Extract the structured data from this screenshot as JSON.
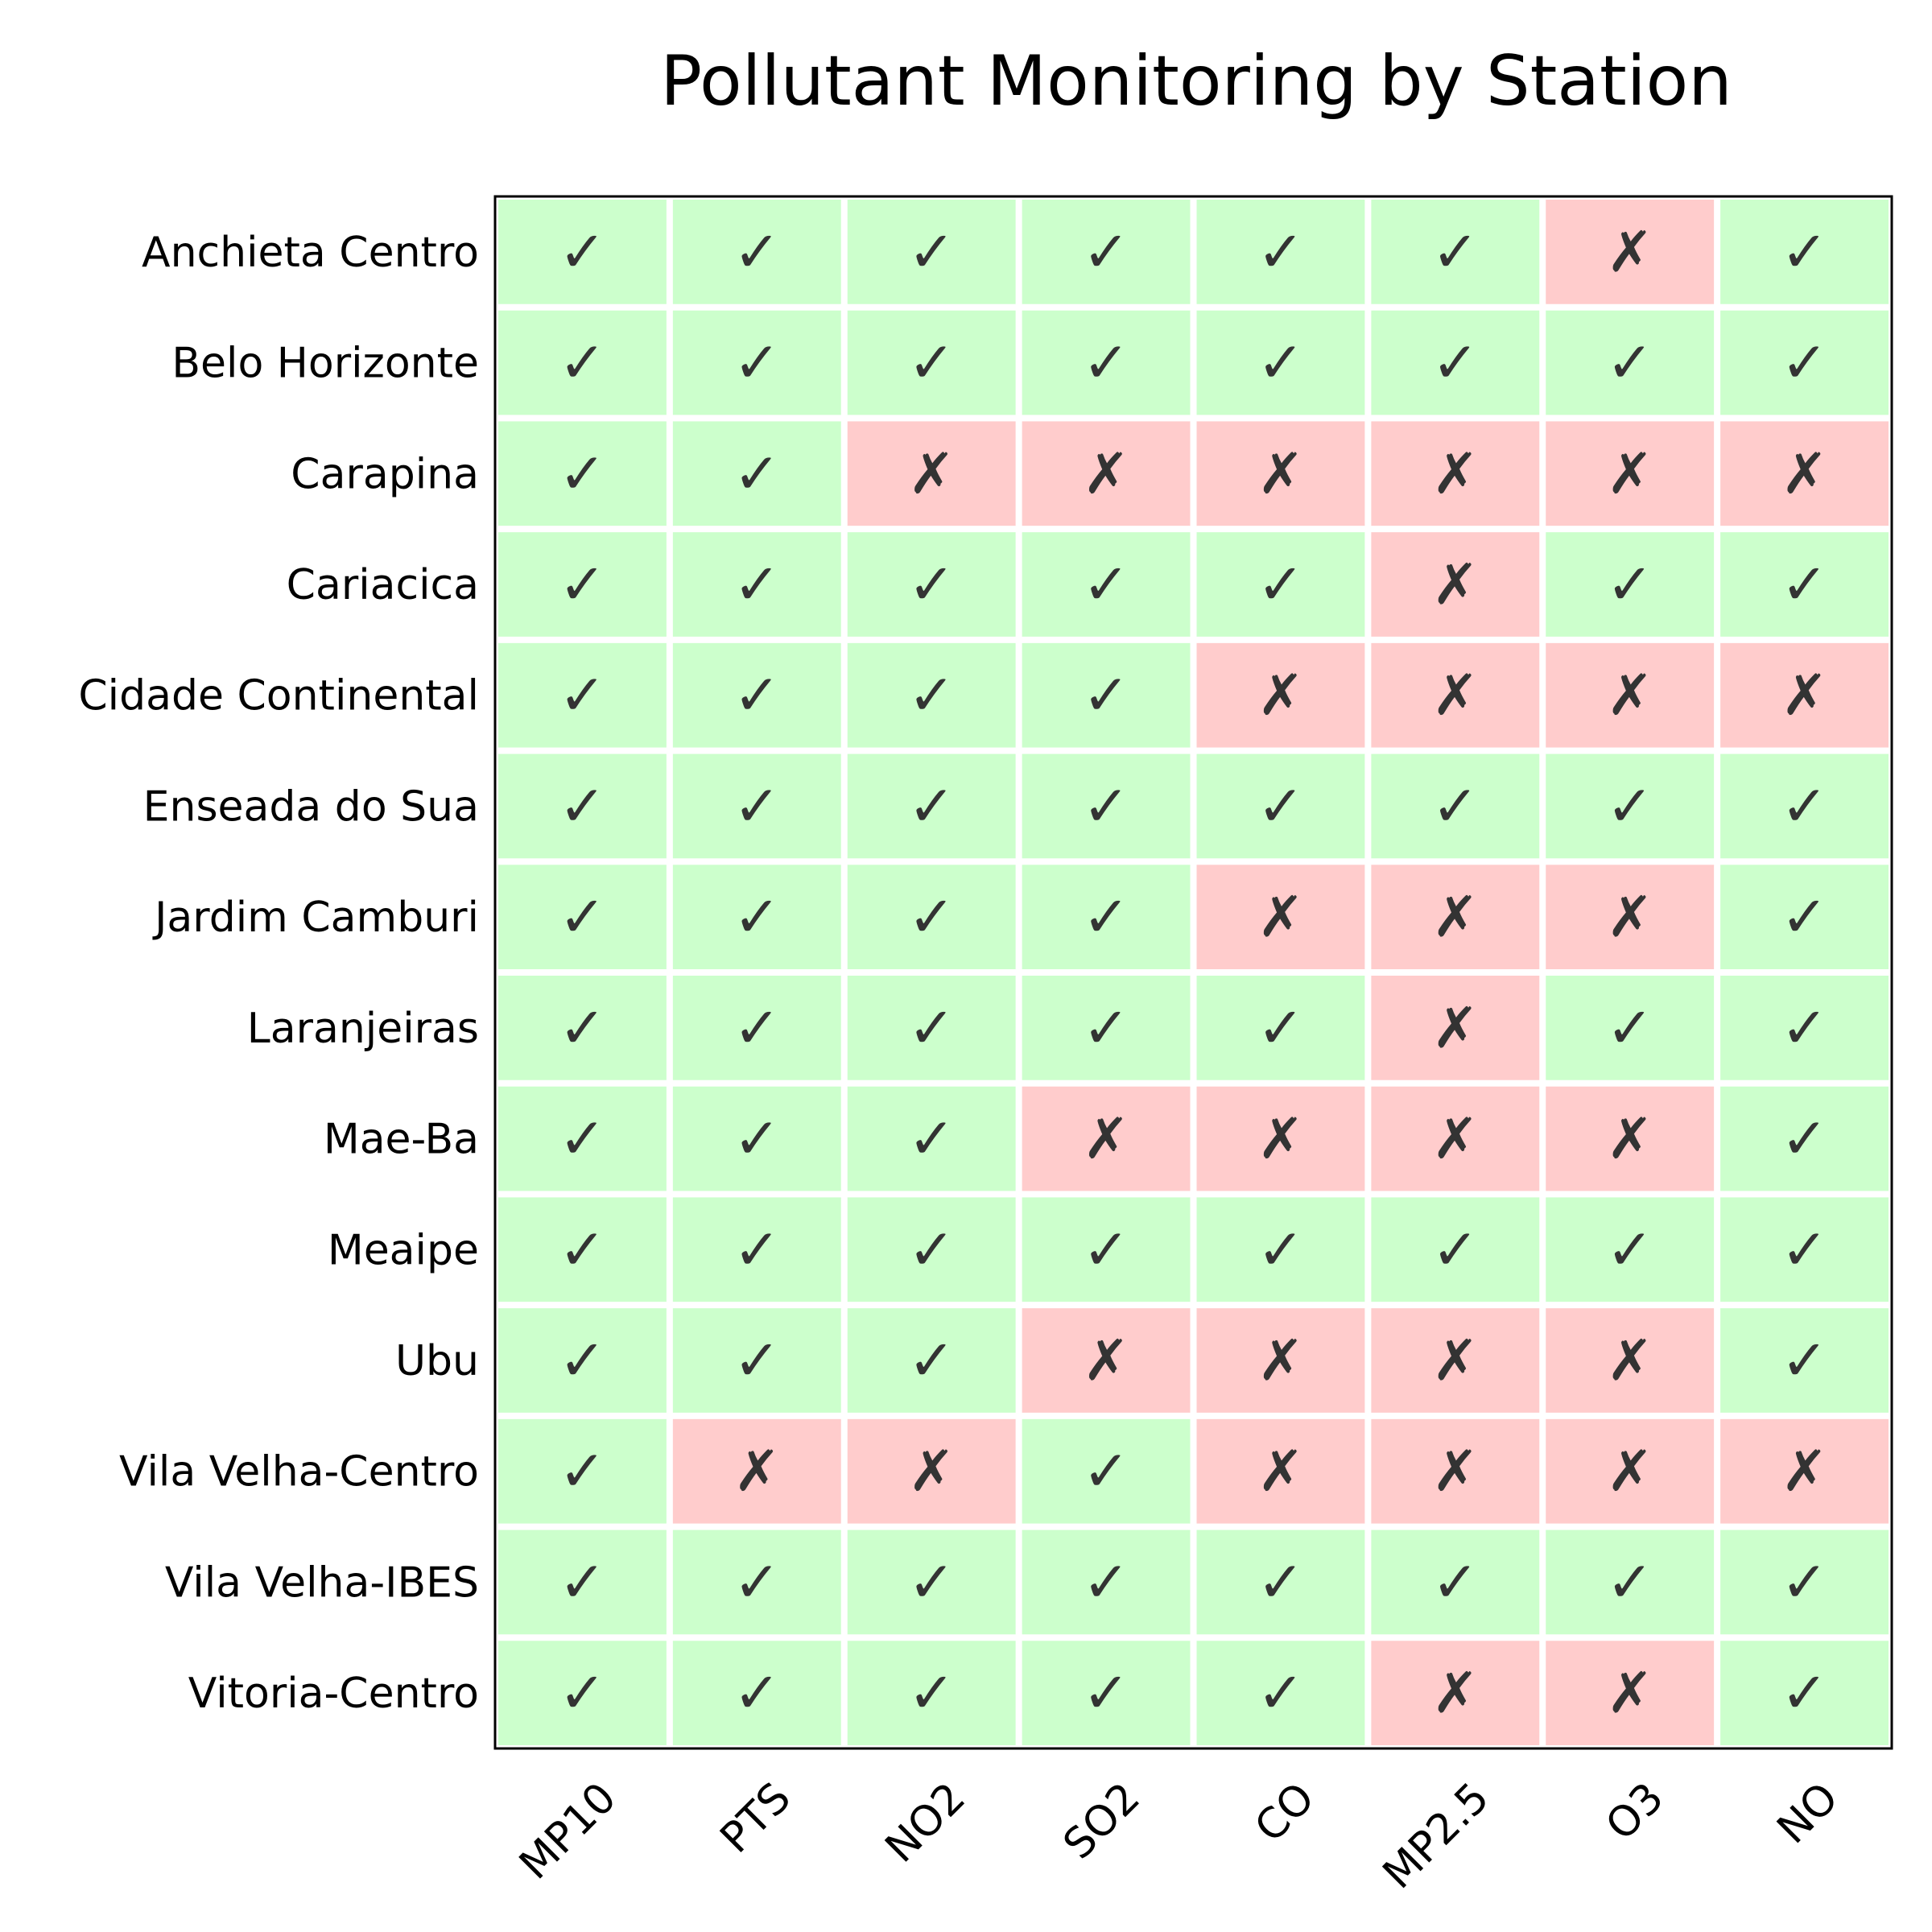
{
  "chart_data": {
    "type": "heatmap",
    "title": "Pollutant Monitoring by Station",
    "xlabel": "",
    "ylabel": "",
    "columns": [
      "MP10",
      "PTS",
      "NO2",
      "SO2",
      "CO",
      "MP2.5",
      "O3",
      "NO"
    ],
    "rows": [
      {
        "station": "Anchieta Centro",
        "values": [
          1,
          1,
          1,
          1,
          1,
          1,
          0,
          1
        ]
      },
      {
        "station": "Belo Horizonte",
        "values": [
          1,
          1,
          1,
          1,
          1,
          1,
          1,
          1
        ]
      },
      {
        "station": "Carapina",
        "values": [
          1,
          1,
          0,
          0,
          0,
          0,
          0,
          0
        ]
      },
      {
        "station": "Cariacica",
        "values": [
          1,
          1,
          1,
          1,
          1,
          0,
          1,
          1
        ]
      },
      {
        "station": "Cidade Continental",
        "values": [
          1,
          1,
          1,
          1,
          0,
          0,
          0,
          0
        ]
      },
      {
        "station": "Enseada do Sua",
        "values": [
          1,
          1,
          1,
          1,
          1,
          1,
          1,
          1
        ]
      },
      {
        "station": "Jardim Camburi",
        "values": [
          1,
          1,
          1,
          1,
          0,
          0,
          0,
          1
        ]
      },
      {
        "station": "Laranjeiras",
        "values": [
          1,
          1,
          1,
          1,
          1,
          0,
          1,
          1
        ]
      },
      {
        "station": "Mae-Ba",
        "values": [
          1,
          1,
          1,
          0,
          0,
          0,
          0,
          1
        ]
      },
      {
        "station": "Meaipe",
        "values": [
          1,
          1,
          1,
          1,
          1,
          1,
          1,
          1
        ]
      },
      {
        "station": "Ubu",
        "values": [
          1,
          1,
          1,
          0,
          0,
          0,
          0,
          1
        ]
      },
      {
        "station": "Vila Velha-Centro",
        "values": [
          1,
          0,
          0,
          1,
          0,
          0,
          0,
          0
        ]
      },
      {
        "station": "Vila Velha-IBES",
        "values": [
          1,
          1,
          1,
          1,
          1,
          1,
          1,
          1
        ]
      },
      {
        "station": "Vitoria-Centro",
        "values": [
          1,
          1,
          1,
          1,
          1,
          0,
          0,
          1
        ]
      }
    ],
    "symbols": {
      "yes": "✓",
      "no": "✗"
    },
    "colors": {
      "monitored": "#ccffcc",
      "not_monitored": "#ffcccc",
      "grid": "#ffffff",
      "mark": "#333333",
      "frame": "#000000"
    }
  }
}
